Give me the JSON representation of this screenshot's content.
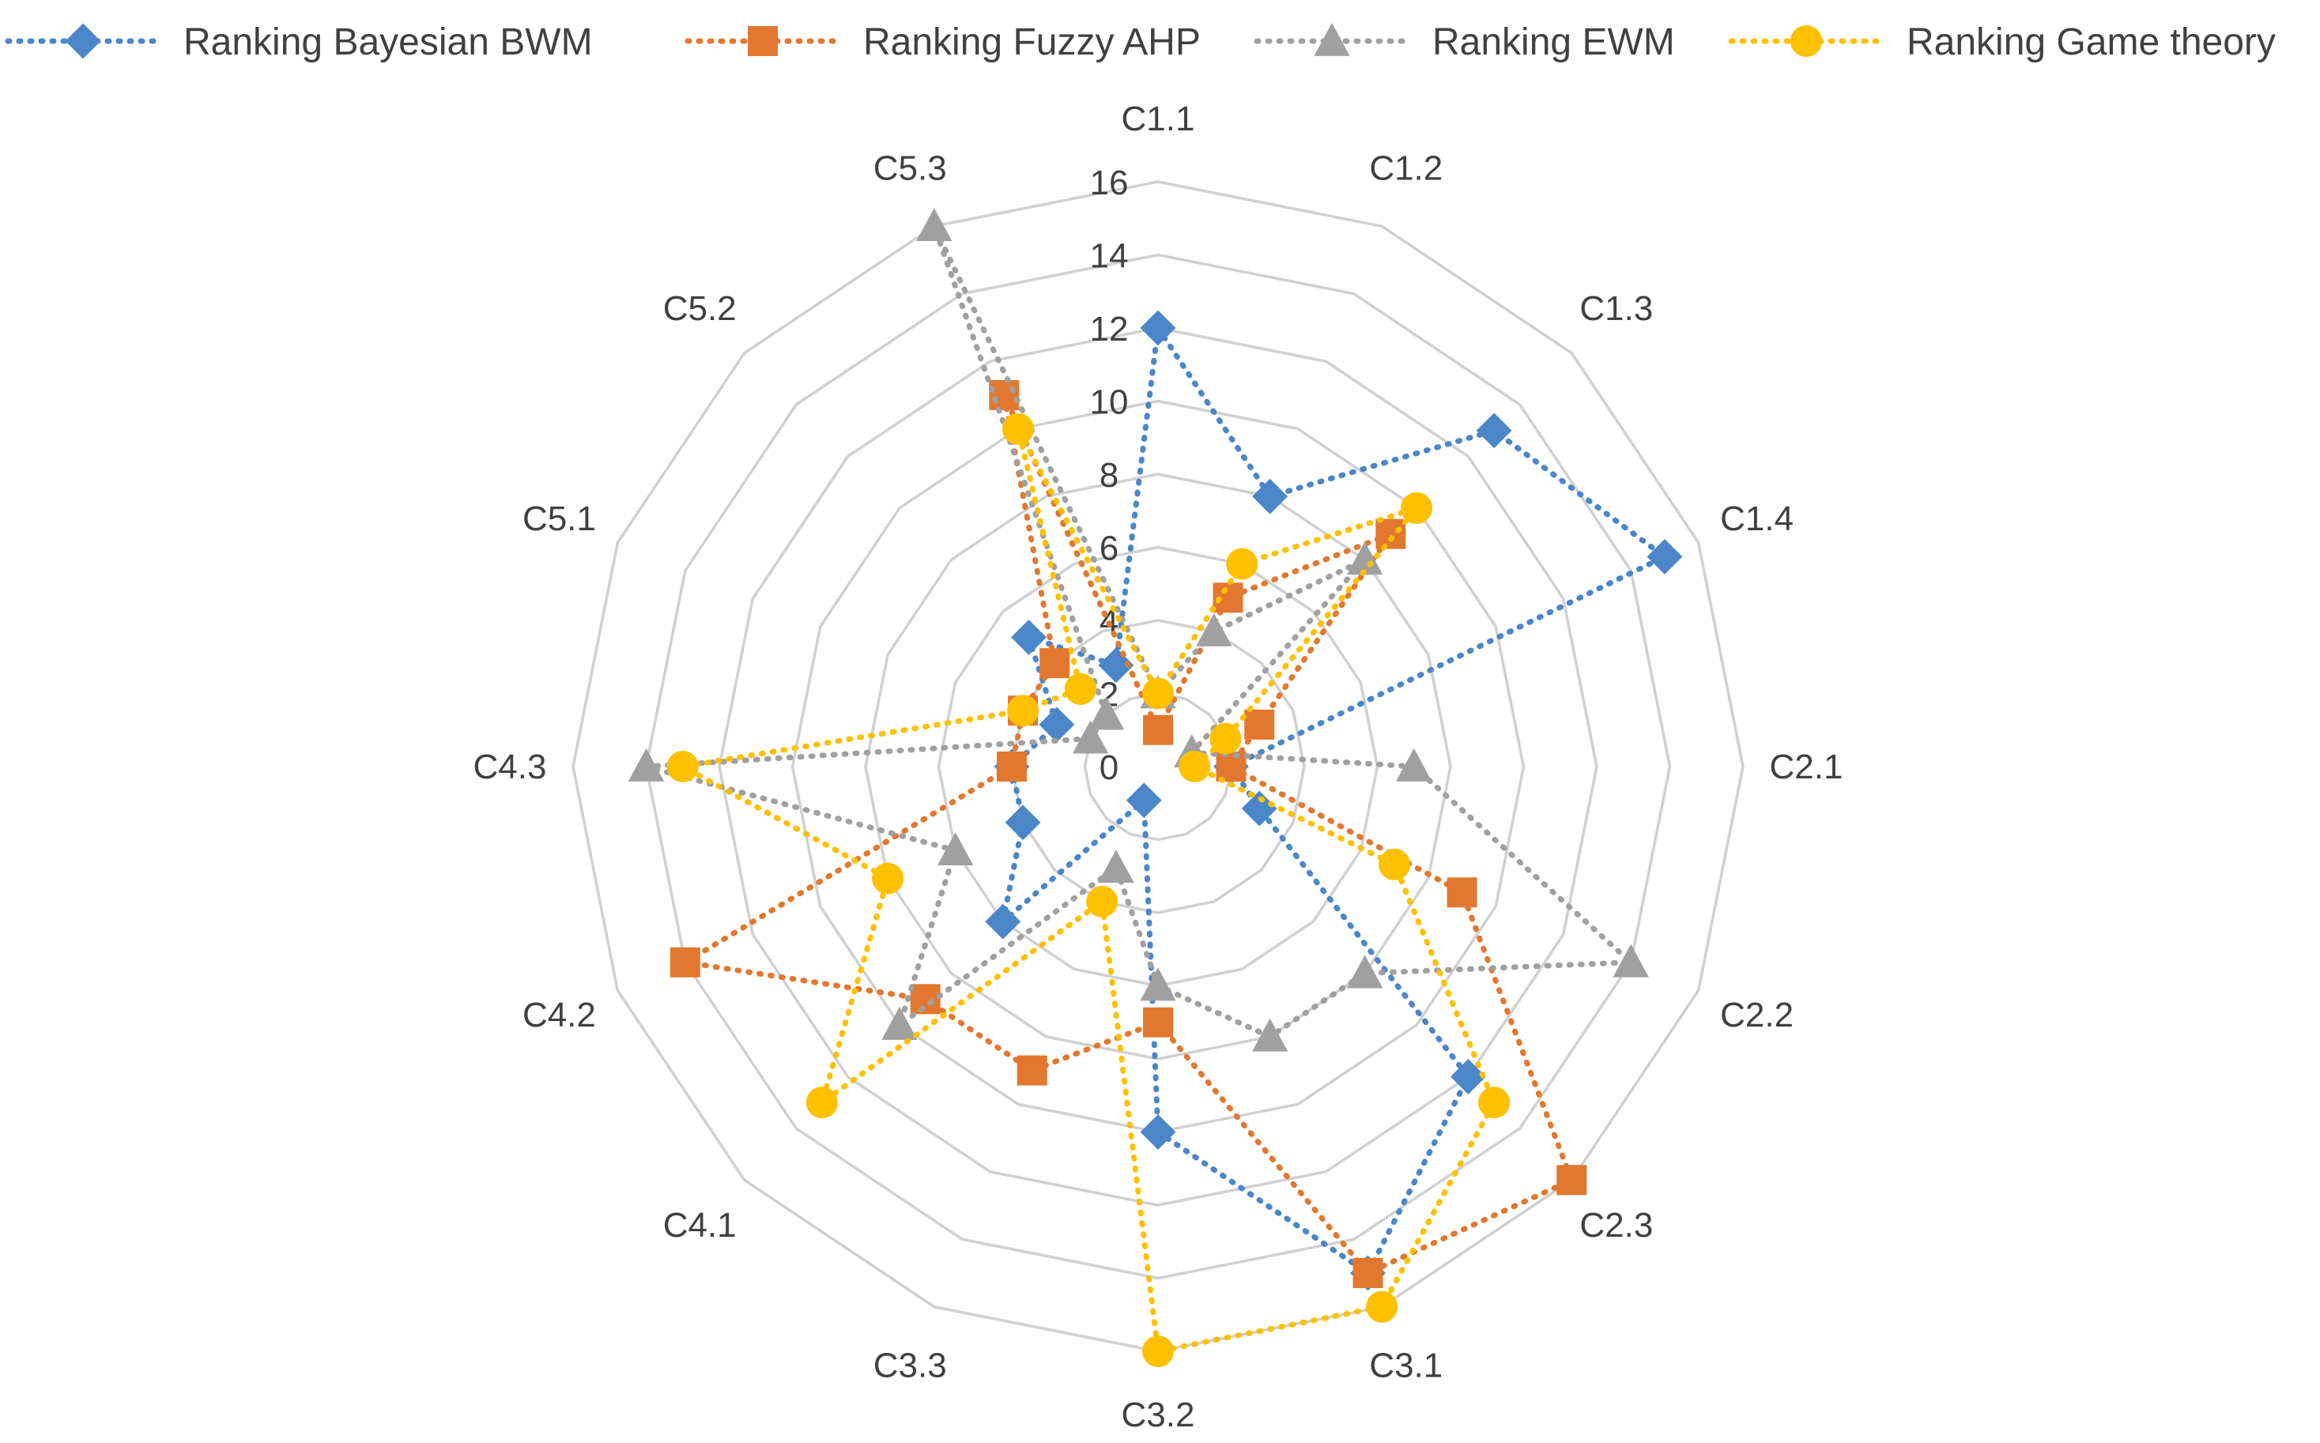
{
  "chart_data": {
    "type": "radar",
    "title": "",
    "categories": [
      "C1.1",
      "C1.2",
      "C1.3",
      "C1.4",
      "C2.1",
      "C2.2",
      "C2.3",
      "C3.1",
      "C3.2",
      "C3.3",
      "C4.1",
      "C4.2",
      "C4.3",
      "C5.1",
      "C5.2",
      "C5.3"
    ],
    "rlim": [
      0,
      16
    ],
    "rticks": [
      0,
      2,
      4,
      6,
      8,
      10,
      12,
      14,
      16
    ],
    "gridlines": true,
    "legend_position": "top",
    "series": [
      {
        "name": "Ranking Bayesian BWM",
        "color": "#4A86C8",
        "marker": "diamond",
        "values": [
          12,
          8,
          13,
          15,
          2,
          3,
          12,
          15,
          10,
          1,
          6,
          4,
          4,
          3,
          5,
          3
        ]
      },
      {
        "name": "Ranking Fuzzy AHP",
        "color": "#E2782F",
        "marker": "square",
        "values": [
          1,
          5,
          9,
          3,
          2,
          9,
          16,
          15,
          7,
          9,
          9,
          14,
          4,
          4,
          4,
          11
        ]
      },
      {
        "name": "Ranking EWM",
        "color": "#A0A0A0",
        "marker": "triangle",
        "values": [
          2,
          4,
          8,
          1,
          7,
          14,
          8,
          8,
          6,
          3,
          10,
          6,
          14,
          2,
          2,
          16
        ]
      },
      {
        "name": "Ranking Game theory",
        "color": "#FFC000",
        "marker": "circle",
        "values": [
          2,
          6,
          10,
          2,
          1,
          7,
          13,
          16,
          16,
          4,
          13,
          8,
          13,
          4,
          3,
          10
        ]
      }
    ]
  }
}
